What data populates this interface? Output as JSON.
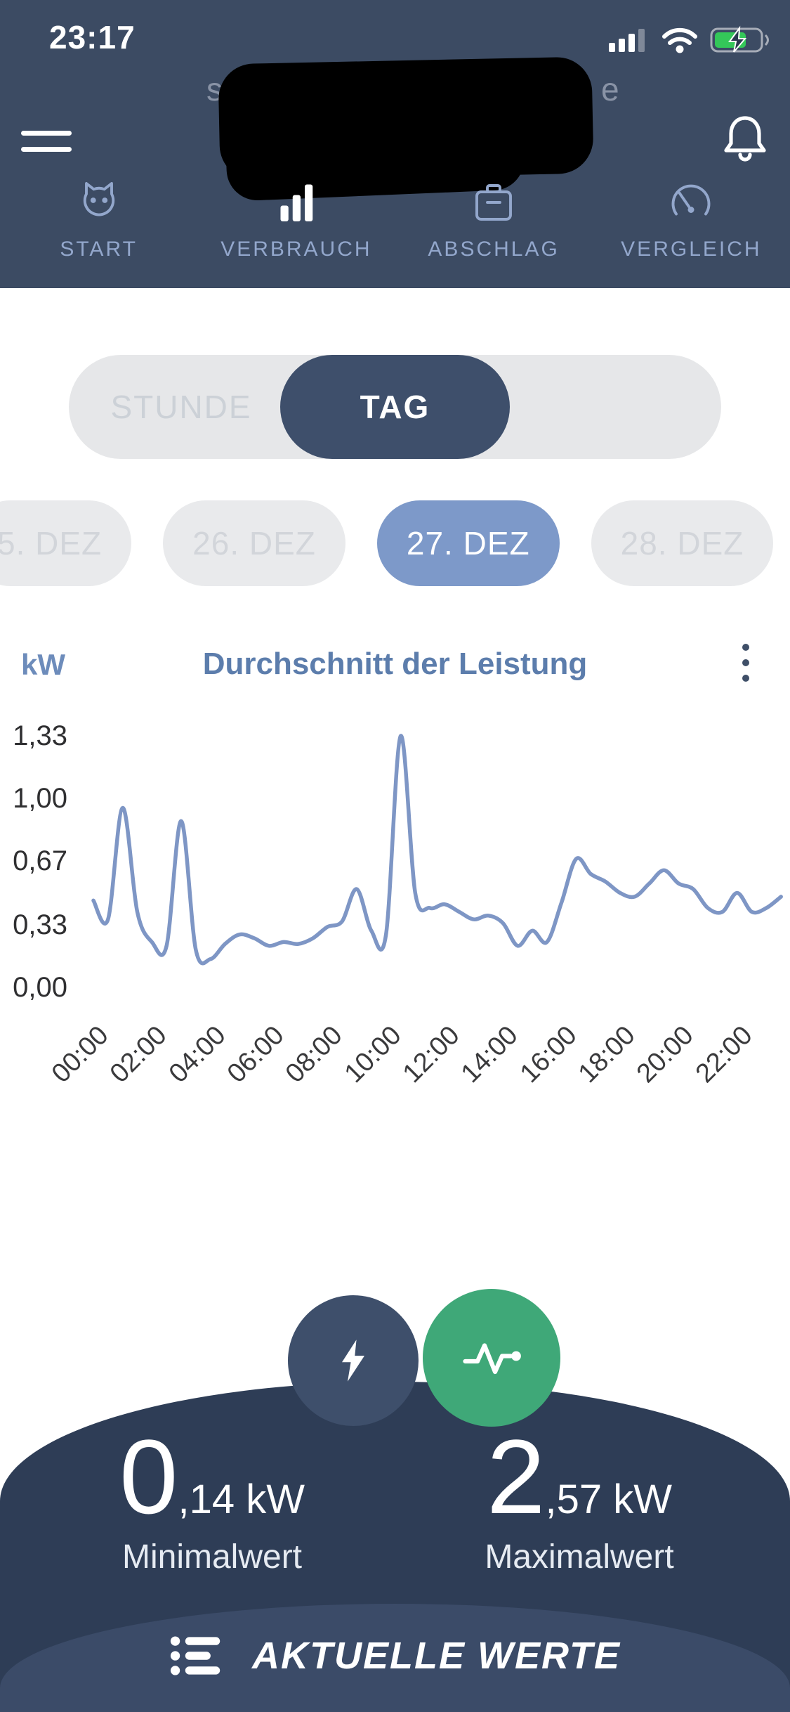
{
  "colors": {
    "header_bg": "#3c4b63",
    "tab_accent": "#93a7cc",
    "segment_selected_bg": "#3e4f6b",
    "chip_selected_bg": "#7d99c9",
    "chart_line": "#7e96c5",
    "chart_title": "#5c7dac",
    "dome_bg": "#2e3d56",
    "bottom_bar_bg": "#3b4b68",
    "green_button": "#3fa878",
    "battery_green": "#34c759"
  },
  "status_bar": {
    "time": "23:17",
    "icons": [
      "cellular-signal",
      "wifi",
      "battery-charging"
    ]
  },
  "header": {
    "title_fragment_left": "s",
    "title_fragment_right": "e",
    "icons": [
      "menu",
      "bell"
    ]
  },
  "nav_tabs": {
    "items": [
      {
        "label": "START",
        "icon": "owl-icon",
        "active": false
      },
      {
        "label": "VERBRAUCH",
        "icon": "bar-chart-icon",
        "active": true
      },
      {
        "label": "ABSCHLAG",
        "icon": "meter-box-icon",
        "active": false
      },
      {
        "label": "VERGLEICH",
        "icon": "gauge-icon",
        "active": false
      }
    ]
  },
  "period_selector": {
    "options": [
      "STUNDE",
      "TAG"
    ],
    "selected": "TAG"
  },
  "date_chips": {
    "items": [
      {
        "label": "5. DEZ",
        "selected": false
      },
      {
        "label": "26. DEZ",
        "selected": false
      },
      {
        "label": "27. DEZ",
        "selected": true
      },
      {
        "label": "28. DEZ",
        "selected": false
      }
    ]
  },
  "chart_data": {
    "type": "line",
    "title": "Durchschnitt der Leistung",
    "ylabel": "kW",
    "xlabel": "",
    "grid": false,
    "legend": false,
    "ylim": [
      0,
      1.45
    ],
    "x_step_hours": 0.5,
    "y_ticks": [
      {
        "label": "1,33",
        "value": 1.33
      },
      {
        "label": "1,00",
        "value": 1.0
      },
      {
        "label": "0,67",
        "value": 0.67
      },
      {
        "label": "0,33",
        "value": 0.33
      },
      {
        "label": "0,00",
        "value": 0.0
      }
    ],
    "x_ticks": [
      {
        "label": "00:00",
        "hour": 0
      },
      {
        "label": "02:00",
        "hour": 2
      },
      {
        "label": "04:00",
        "hour": 4
      },
      {
        "label": "06:00",
        "hour": 6
      },
      {
        "label": "08:00",
        "hour": 8
      },
      {
        "label": "10:00",
        "hour": 10
      },
      {
        "label": "12:00",
        "hour": 12
      },
      {
        "label": "14:00",
        "hour": 14
      },
      {
        "label": "16:00",
        "hour": 16
      },
      {
        "label": "18:00",
        "hour": 18
      },
      {
        "label": "20:00",
        "hour": 20
      },
      {
        "label": "22:00",
        "hour": 22
      }
    ],
    "values": [
      0.46,
      0.36,
      0.95,
      0.4,
      0.24,
      0.22,
      0.88,
      0.2,
      0.15,
      0.23,
      0.28,
      0.26,
      0.22,
      0.24,
      0.23,
      0.26,
      0.32,
      0.35,
      0.52,
      0.3,
      0.28,
      1.33,
      0.5,
      0.42,
      0.44,
      0.4,
      0.36,
      0.38,
      0.34,
      0.22,
      0.3,
      0.24,
      0.45,
      0.68,
      0.6,
      0.56,
      0.5,
      0.48,
      0.55,
      0.62,
      0.55,
      0.52,
      0.42,
      0.4,
      0.5,
      0.4,
      0.42,
      0.48
    ]
  },
  "stats": {
    "min": {
      "value_int": "0",
      "value_rest": ",14 kW",
      "label": "Minimalwert"
    },
    "max": {
      "value_int": "2",
      "value_rest": ",57 kW",
      "label": "Maximalwert"
    }
  },
  "actions": {
    "flash_button_icon": "lightning-icon",
    "pulse_button_icon": "pulse-icon"
  },
  "bottom_bar": {
    "label": "AKTUELLE WERTE",
    "icon": "list-icon"
  }
}
